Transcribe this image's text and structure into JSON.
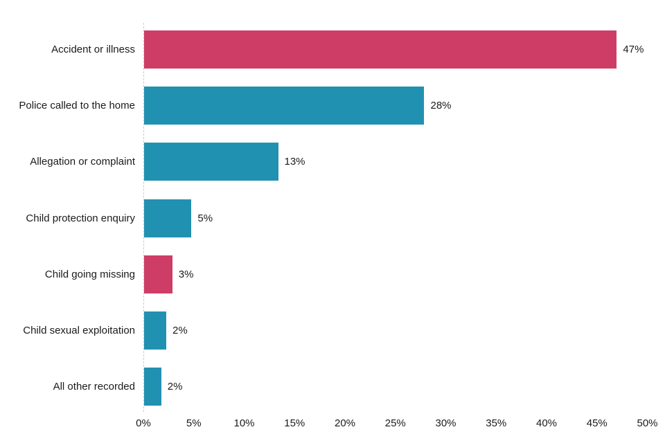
{
  "chart_data": {
    "type": "bar",
    "orientation": "horizontal",
    "title": "",
    "categories": [
      "Accident or illness",
      "Police called to the home",
      "Allegation or complaint",
      "Child protection enquiry",
      "Child going missing",
      "Child sexual exploitation",
      "All other recorded"
    ],
    "values": [
      47,
      28,
      13,
      5,
      3,
      2,
      2
    ],
    "value_labels": [
      "47%",
      "28%",
      "13%",
      "5%",
      "3%",
      "2%",
      "2%"
    ],
    "bar_length_pct": [
      46.9,
      27.8,
      13.3,
      4.7,
      2.8,
      2.2,
      1.7
    ],
    "bar_colors": [
      "#ce3d66",
      "#2191b2",
      "#2191b2",
      "#2191b2",
      "#ce3d66",
      "#2191b2",
      "#2191b2"
    ],
    "colors": {
      "pink_accent": "#ce3d66",
      "blue": "#2191b2",
      "axis_line": "#c9c9c9",
      "text": "#1a1a1a",
      "background": "#ffffff"
    },
    "xlabel": "",
    "ylabel": "",
    "xlim": [
      0,
      50
    ],
    "x_tick_labels": [
      "0%",
      "5%",
      "10%",
      "15%",
      "20%",
      "25%",
      "30%",
      "35%",
      "40%",
      "45%",
      "50%"
    ],
    "grid": false,
    "legend": "none"
  }
}
